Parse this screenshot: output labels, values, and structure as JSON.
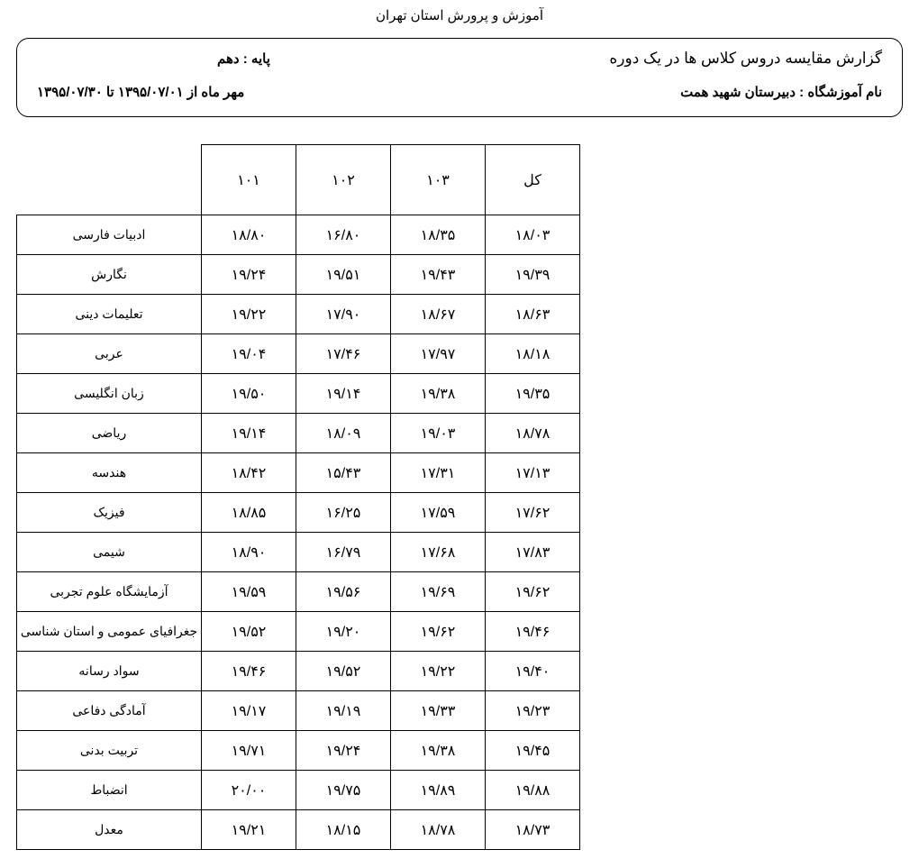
{
  "header": "آموزش و پرورش استان تهران",
  "box": {
    "report_title": "گزارش مقایسه دروس کلاس ها  در یک دوره",
    "grade_label": "پایه :",
    "grade_value": "دهم",
    "school_label": "نام آموزشگاه :",
    "school_value": "دبیرستان شهید همت",
    "period": "مهر ماه  از ۱۳۹۵/۰۷/۰۱ تا ۱۳۹۵/۰۷/۳۰"
  },
  "table": {
    "columns": [
      "۱۰۱",
      "۱۰۲",
      "۱۰۳",
      "کل"
    ],
    "subject_col_width": 205,
    "value_col_width": 105,
    "header_row_height": 78,
    "body_row_height": 44,
    "border_color": "#000000",
    "font_size_header": 16,
    "font_size_body": 16,
    "font_size_subject": 14,
    "rows": [
      {
        "subject": "ادبیات فارسی",
        "v": [
          "۱۸/۸۰",
          "۱۶/۸۰",
          "۱۸/۳۵",
          "۱۸/۰۳"
        ]
      },
      {
        "subject": "نگارش",
        "v": [
          "۱۹/۲۴",
          "۱۹/۵۱",
          "۱۹/۴۳",
          "۱۹/۳۹"
        ]
      },
      {
        "subject": "تعلیمات دینی",
        "v": [
          "۱۹/۲۲",
          "۱۷/۹۰",
          "۱۸/۶۷",
          "۱۸/۶۳"
        ]
      },
      {
        "subject": "عربی",
        "v": [
          "۱۹/۰۴",
          "۱۷/۴۶",
          "۱۷/۹۷",
          "۱۸/۱۸"
        ]
      },
      {
        "subject": "زبان انگلیسی",
        "v": [
          "۱۹/۵۰",
          "۱۹/۱۴",
          "۱۹/۳۸",
          "۱۹/۳۵"
        ]
      },
      {
        "subject": "ریاضی",
        "v": [
          "۱۹/۱۴",
          "۱۸/۰۹",
          "۱۹/۰۳",
          "۱۸/۷۸"
        ]
      },
      {
        "subject": "هندسه",
        "v": [
          "۱۸/۴۲",
          "۱۵/۴۳",
          "۱۷/۳۱",
          "۱۷/۱۳"
        ]
      },
      {
        "subject": "فیزیک",
        "v": [
          "۱۸/۸۵",
          "۱۶/۲۵",
          "۱۷/۵۹",
          "۱۷/۶۲"
        ]
      },
      {
        "subject": "شیمی",
        "v": [
          "۱۸/۹۰",
          "۱۶/۷۹",
          "۱۷/۶۸",
          "۱۷/۸۳"
        ]
      },
      {
        "subject": "آزمایشگاه علوم تجربی",
        "v": [
          "۱۹/۵۹",
          "۱۹/۵۶",
          "۱۹/۶۹",
          "۱۹/۶۲"
        ]
      },
      {
        "subject": "جغرافیای عمومی و استان شناسی",
        "v": [
          "۱۹/۵۲",
          "۱۹/۲۰",
          "۱۹/۶۲",
          "۱۹/۴۶"
        ]
      },
      {
        "subject": "سواد رسانه",
        "v": [
          "۱۹/۴۶",
          "۱۹/۵۲",
          "۱۹/۲۲",
          "۱۹/۴۰"
        ]
      },
      {
        "subject": "آمادگی دفاعی",
        "v": [
          "۱۹/۱۷",
          "۱۹/۱۹",
          "۱۹/۳۳",
          "۱۹/۲۳"
        ]
      },
      {
        "subject": "تربیت بدنی",
        "v": [
          "۱۹/۷۱",
          "۱۹/۲۴",
          "۱۹/۳۸",
          "۱۹/۴۵"
        ]
      },
      {
        "subject": "انضباط",
        "v": [
          "۲۰/۰۰",
          "۱۹/۷۵",
          "۱۹/۸۹",
          "۱۹/۸۸"
        ]
      },
      {
        "subject": "معدل",
        "v": [
          "۱۹/۲۱",
          "۱۸/۱۵",
          "۱۸/۷۸",
          "۱۸/۷۳"
        ]
      }
    ]
  }
}
